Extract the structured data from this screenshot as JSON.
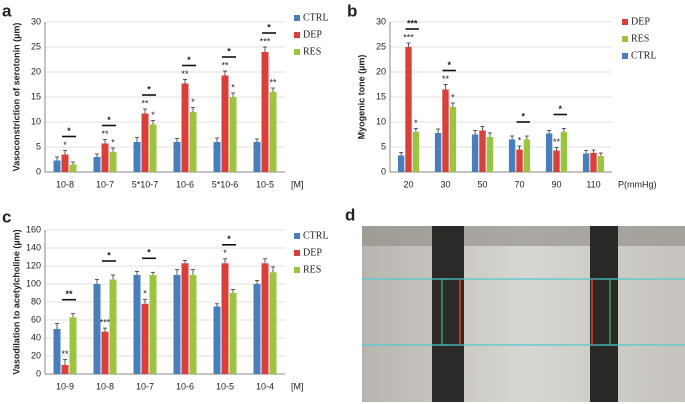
{
  "chart_data": [
    {
      "type": "bar",
      "panel": "a",
      "ylabel": "Vasoconstriction of serotonin (µm)",
      "xlabel": "[M]",
      "categories": [
        "10-8",
        "10-7",
        "5*10-7",
        "10-6",
        "5*10-6",
        "10-5"
      ],
      "series": [
        {
          "name": "CTRL",
          "color": "#4a7ebb",
          "values": [
            2.3,
            3,
            6,
            6,
            6,
            6
          ],
          "errors": [
            0.7,
            0.6,
            0.9,
            0.7,
            0.8,
            0.6
          ],
          "annotations": [
            null,
            null,
            null,
            null,
            null,
            null
          ]
        },
        {
          "name": "DEP",
          "color": "#d9403a",
          "values": [
            3.5,
            5.7,
            11.7,
            17.7,
            19.3,
            24
          ],
          "errors": [
            0.8,
            0.8,
            0.9,
            0.8,
            0.9,
            1
          ],
          "annotations": [
            "*",
            "**",
            "**",
            "**",
            "**",
            "***"
          ]
        },
        {
          "name": "RES",
          "color": "#9bc443",
          "values": [
            1.5,
            4,
            9.5,
            12,
            15,
            16
          ],
          "errors": [
            0.5,
            0.8,
            0.8,
            0.9,
            0.8,
            0.8
          ],
          "annotations": [
            null,
            "*",
            "*",
            "*",
            "*",
            "**"
          ]
        }
      ],
      "brackets": [
        {
          "category": "10-8",
          "text": "*"
        },
        {
          "category": "10-7",
          "text": "*"
        },
        {
          "category": "5*10-7",
          "text": "*"
        },
        {
          "category": "10-6",
          "text": "*"
        },
        {
          "category": "5*10-6",
          "text": "*"
        },
        {
          "category": "10-5",
          "text": "*"
        }
      ],
      "ylim": [
        0,
        30
      ],
      "yticks": [
        0,
        5,
        10,
        15,
        20,
        25,
        30
      ],
      "grid": true,
      "legend": "right"
    },
    {
      "type": "bar",
      "panel": "b",
      "ylabel": "Myogenic tone (µm)",
      "xlabel": "P(mmHg)",
      "categories": [
        "20",
        "30",
        "50",
        "70",
        "90",
        "110"
      ],
      "series": [
        {
          "name": "DEP",
          "color": "#d9403a",
          "values": [
            25,
            16.5,
            8.3,
            4.5,
            4.3,
            3.8
          ],
          "errors": [
            0.8,
            1,
            0.8,
            0.7,
            0.6,
            0.6
          ],
          "annotations": [
            "***",
            "**",
            null,
            "*",
            "**",
            null
          ]
        },
        {
          "name": "RES",
          "color": "#9bc443",
          "values": [
            8,
            13,
            7,
            6.5,
            8,
            3.2
          ],
          "errors": [
            0.7,
            0.8,
            0.8,
            0.7,
            0.7,
            0.6
          ],
          "annotations": [
            "*",
            "*",
            null,
            null,
            null,
            null
          ]
        },
        {
          "name": "CTRL",
          "color": "#4a7ebb",
          "values": [
            3.3,
            7.8,
            7.5,
            6.5,
            7.7,
            3.7
          ],
          "errors": [
            0.6,
            0.8,
            0.8,
            0.7,
            0.6,
            0.6
          ],
          "annotations": [
            null,
            null,
            null,
            null,
            null,
            null
          ]
        }
      ],
      "bar_order": [
        "CTRL",
        "DEP",
        "RES"
      ],
      "brackets": [
        {
          "category": "20",
          "text": "***"
        },
        {
          "category": "30",
          "text": "*"
        },
        {
          "category": "70",
          "text": "*"
        },
        {
          "category": "90",
          "text": "*"
        }
      ],
      "ylim": [
        0,
        30
      ],
      "yticks": [
        0,
        5,
        10,
        15,
        20,
        25,
        30
      ],
      "grid": true,
      "legend": "right"
    },
    {
      "type": "bar",
      "panel": "c",
      "ylabel": "Vasodilation to acetylcholine (µm)",
      "xlabel": "[M]",
      "categories": [
        "10-9",
        "10-8",
        "10-7",
        "10-6",
        "10-5",
        "10-4"
      ],
      "series": [
        {
          "name": "CTRL",
          "color": "#4a7ebb",
          "values": [
            50,
            100,
            110,
            110,
            75,
            100
          ],
          "errors": [
            6,
            5,
            4,
            6,
            3,
            4
          ],
          "annotations": [
            null,
            null,
            null,
            null,
            null,
            null
          ]
        },
        {
          "name": "DEP",
          "color": "#d9403a",
          "values": [
            10,
            47,
            78,
            123,
            123,
            123
          ],
          "errors": [
            6,
            4,
            5,
            3,
            5,
            5
          ],
          "annotations": [
            "**",
            "***",
            "*",
            null,
            "*",
            null
          ]
        },
        {
          "name": "RES",
          "color": "#9bc443",
          "values": [
            63,
            105,
            110,
            110,
            90,
            113
          ],
          "errors": [
            4,
            5,
            3,
            6,
            4,
            6
          ],
          "annotations": [
            null,
            null,
            null,
            null,
            null,
            null
          ]
        }
      ],
      "brackets": [
        {
          "category": "10-9",
          "text": "**"
        },
        {
          "category": "10-8",
          "text": "*"
        },
        {
          "category": "10-7",
          "text": "*"
        },
        {
          "category": "10-5",
          "text": "*"
        }
      ],
      "ylim": [
        0,
        160
      ],
      "yticks": [
        0,
        20,
        40,
        60,
        80,
        100,
        120,
        140,
        160
      ],
      "grid": true,
      "legend": "right"
    }
  ],
  "image_panel": {
    "label": "d"
  }
}
